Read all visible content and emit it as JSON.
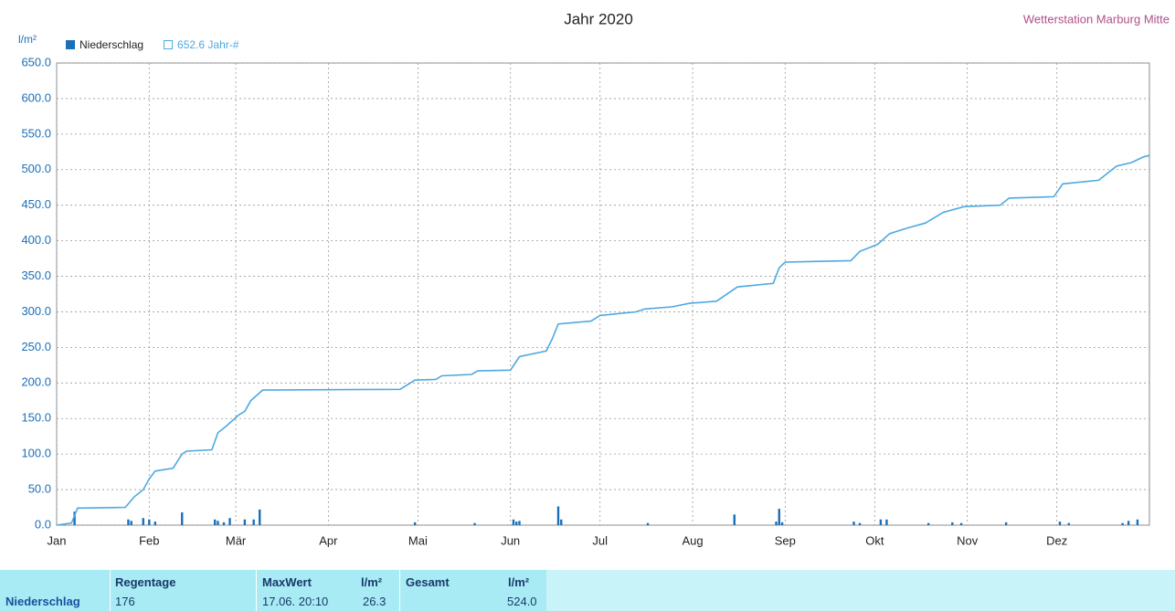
{
  "chart_data": {
    "type": "combo",
    "title": "Jahr 2020",
    "subtitle": "Wetterstation Marburg Mitte",
    "y_label": "l/m²",
    "xlim": [
      0,
      366
    ],
    "xticks": [
      {
        "value": 0,
        "label": "Jan"
      },
      {
        "value": 31,
        "label": "Feb"
      },
      {
        "value": 60,
        "label": "Mär"
      },
      {
        "value": 91,
        "label": "Apr"
      },
      {
        "value": 121,
        "label": "Mai"
      },
      {
        "value": 152,
        "label": "Jun"
      },
      {
        "value": 182,
        "label": "Jul"
      },
      {
        "value": 213,
        "label": "Aug"
      },
      {
        "value": 244,
        "label": "Sep"
      },
      {
        "value": 274,
        "label": "Okt"
      },
      {
        "value": 305,
        "label": "Nov"
      },
      {
        "value": 335,
        "label": "Dez"
      }
    ],
    "ylim": [
      0,
      650
    ],
    "yticks": [
      {
        "value": 0,
        "label": "0.0"
      },
      {
        "value": 50,
        "label": "50.0"
      },
      {
        "value": 100,
        "label": "100.0"
      },
      {
        "value": 150,
        "label": "150.0"
      },
      {
        "value": 200,
        "label": "200.0"
      },
      {
        "value": 250,
        "label": "250.0"
      },
      {
        "value": 300,
        "label": "300.0"
      },
      {
        "value": 350,
        "label": "350.0"
      },
      {
        "value": 400,
        "label": "400.0"
      },
      {
        "value": 450,
        "label": "450.0"
      },
      {
        "value": 500,
        "label": "500.0"
      },
      {
        "value": 550,
        "label": "550.0"
      },
      {
        "value": 600,
        "label": "600.0"
      },
      {
        "value": 650,
        "label": "650.0"
      }
    ],
    "grid": true,
    "series": [
      {
        "name": "Niederschlag",
        "color": "#1b6fb8",
        "kind": "bar",
        "x": [
          6,
          24,
          25,
          29,
          31,
          33,
          42,
          53,
          54,
          56,
          58,
          63,
          66,
          68,
          120,
          140,
          153,
          154,
          155,
          168,
          169,
          198,
          227,
          241,
          242,
          243,
          267,
          269,
          276,
          278,
          292,
          300,
          303,
          318,
          336,
          339,
          357,
          359,
          362
        ],
        "values": [
          19,
          8,
          6,
          10,
          8,
          5,
          18,
          8,
          6,
          4,
          10,
          8,
          8,
          22,
          4,
          3,
          8,
          5,
          6,
          26.3,
          8,
          3,
          15,
          5,
          23,
          4,
          5,
          3,
          8,
          8,
          3,
          4,
          3,
          4,
          5,
          3,
          3,
          6,
          8
        ]
      },
      {
        "name": "652.6 Jahr-#",
        "color": "#4da9e0",
        "kind": "line",
        "x": [
          0,
          5,
          7,
          8,
          23,
          26,
          29,
          31,
          33,
          39,
          42,
          43.5,
          52,
          54,
          57,
          61,
          63,
          65,
          69,
          115,
          120,
          127,
          129,
          139,
          141,
          152,
          155,
          164,
          166,
          168,
          179,
          182,
          194,
          197,
          206,
          212,
          221,
          228,
          240,
          242,
          244,
          266,
          269,
          275,
          279,
          285,
          291,
          297,
          304,
          316,
          319,
          334,
          337,
          349,
          355,
          360,
          364,
          366
        ],
        "values": [
          0,
          3,
          24,
          24,
          25,
          40,
          50,
          65,
          76,
          80,
          100,
          104,
          106,
          130,
          140,
          155,
          160,
          175,
          190,
          191,
          204,
          205,
          210,
          212,
          217,
          218,
          237,
          245,
          262,
          283,
          287,
          295,
          300,
          304,
          307,
          312,
          315,
          335,
          340,
          362,
          370,
          372,
          385,
          395,
          410,
          418,
          425,
          440,
          448,
          450,
          460,
          462,
          480,
          485,
          505,
          510,
          518,
          520
        ]
      }
    ]
  },
  "table": {
    "header": [
      "Regentage",
      "MaxWert",
      "l/m²",
      "Gesamt",
      "l/m²"
    ],
    "rows": [
      [
        "Niederschlag",
        "176",
        "17.06. 20:10",
        "26.3",
        "524.0"
      ]
    ]
  }
}
